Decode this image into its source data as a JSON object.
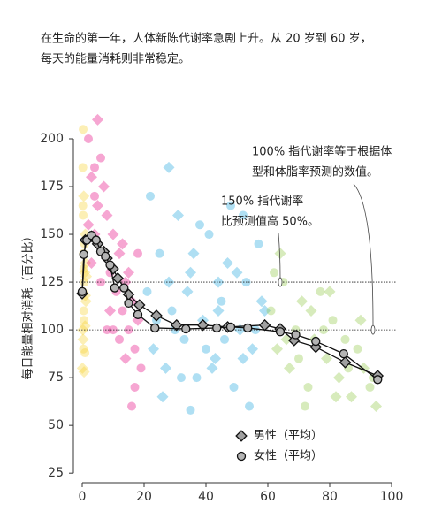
{
  "chart_data": {
    "type": "scatter",
    "description": [
      "在生命的第一年，人体新陈代谢率急剧上升。从 20 岁到 60 岁，",
      "每天的能量消耗则非常稳定。"
    ],
    "ylabel": "每日能量相对消耗（百分比）",
    "xlim": [
      -2,
      100
    ],
    "xticks": [
      0,
      20,
      40,
      60,
      80,
      100
    ],
    "ylim": [
      20,
      200
    ],
    "yticks": [
      25,
      50,
      75,
      100,
      125,
      150,
      175,
      200
    ],
    "reference_lines": [
      125,
      100
    ],
    "annotations": [
      {
        "lines": [
          "100% 指代谢率等于根据体",
          "型和体脂率预测的数值。"
        ],
        "x": 94,
        "y": 100
      },
      {
        "lines": [
          "150% 指代谢率",
          "比预测值高 50%。"
        ],
        "x": 64,
        "y": 125
      }
    ],
    "legend": "bottom",
    "series": [
      {
        "name": "男性（平均）",
        "color": "#a0a0a0",
        "marker": "diamond",
        "x": [
          0,
          1,
          3,
          5,
          7,
          8,
          10,
          11.5,
          15,
          18.5,
          24,
          30.5,
          39,
          47,
          59,
          64,
          68.5,
          75.5,
          85,
          95.5
        ],
        "values": [
          119,
          147,
          149,
          145,
          141,
          137.5,
          132,
          127,
          118.5,
          113,
          107.5,
          102.5,
          102.5,
          101.5,
          102.5,
          100.5,
          94.5,
          91,
          83,
          76
        ]
      },
      {
        "name": "女性（平均）",
        "color": "#b4b4b4",
        "marker": "circle",
        "x": [
          0,
          0.5,
          1.5,
          3,
          4.5,
          6,
          7.5,
          9,
          10.5,
          13.5,
          15,
          18,
          23.5,
          33.5,
          43.5,
          48,
          53.5,
          64,
          69,
          75.5,
          84.5,
          95.5
        ],
        "values": [
          120,
          139.5,
          147,
          149.5,
          147,
          141,
          138.5,
          134,
          122,
          122,
          114,
          108,
          101,
          100.5,
          101,
          101.5,
          101,
          99,
          97.5,
          94,
          87.5,
          74
        ]
      }
    ],
    "cloud": [
      {
        "color": "#f7d02c",
        "x": [
          0.2,
          0.5,
          0.3,
          1,
          0.4,
          0.8,
          0.2,
          1.2,
          0.6,
          0.3,
          0.9,
          0.1,
          0.7,
          1.1,
          0.5,
          0.2,
          0.8,
          1.3,
          0.4,
          0.6,
          0.3,
          1,
          0.5,
          0.9,
          0.2
        ],
        "y": [
          185,
          170,
          160,
          150,
          140,
          130,
          120,
          115,
          105,
          95,
          88,
          80,
          125,
          135,
          110,
          100,
          145,
          128,
          90,
          78,
          205,
          118,
          132,
          102,
          165
        ]
      },
      {
        "color": "#e4007f",
        "x": [
          2,
          3,
          4,
          5,
          6,
          4,
          7,
          8,
          9,
          10,
          11,
          12,
          13,
          14,
          15,
          16,
          17,
          18,
          19,
          3,
          6,
          9,
          12,
          15,
          17,
          5,
          8,
          14,
          18,
          2,
          4,
          7,
          10,
          13,
          16
        ],
        "y": [
          200,
          180,
          170,
          165,
          190,
          150,
          140,
          160,
          130,
          150,
          120,
          140,
          110,
          125,
          100,
          115,
          90,
          105,
          80,
          135,
          125,
          110,
          95,
          130,
          70,
          210,
          100,
          85,
          140,
          155,
          185,
          175,
          100,
          145,
          60
        ]
      },
      {
        "color": "#1aa3dc",
        "x": [
          21,
          23,
          25,
          27,
          29,
          31,
          33,
          35,
          37,
          39,
          41,
          43,
          45,
          47,
          49,
          51,
          53,
          55,
          57,
          59,
          22,
          26,
          30,
          34,
          38,
          42,
          46,
          50,
          54,
          58,
          24,
          28,
          32,
          36,
          40,
          44,
          48,
          52,
          56,
          28,
          35,
          44,
          52
        ],
        "y": [
          120,
          90,
          140,
          80,
          110,
          160,
          95,
          130,
          75,
          105,
          150,
          85,
          115,
          135,
          70,
          100,
          125,
          90,
          145,
          110,
          170,
          65,
          100,
          120,
          155,
          80,
          95,
          130,
          60,
          115,
          105,
          125,
          75,
          140,
          90,
          110,
          165,
          85,
          100,
          185,
          58,
          125,
          160
        ]
      },
      {
        "color": "#8dc63f",
        "x": [
          61,
          63,
          65,
          67,
          69,
          71,
          73,
          75,
          77,
          79,
          81,
          83,
          85,
          87,
          89,
          91,
          93,
          95,
          62,
          66,
          70,
          74,
          78,
          82,
          86,
          90,
          94,
          64,
          72,
          80
        ],
        "y": [
          110,
          90,
          125,
          80,
          100,
          115,
          70,
          95,
          120,
          85,
          105,
          75,
          95,
          65,
          90,
          80,
          70,
          60,
          130,
          95,
          85,
          110,
          100,
          65,
          80,
          105,
          75,
          140,
          60,
          120
        ]
      }
    ]
  }
}
